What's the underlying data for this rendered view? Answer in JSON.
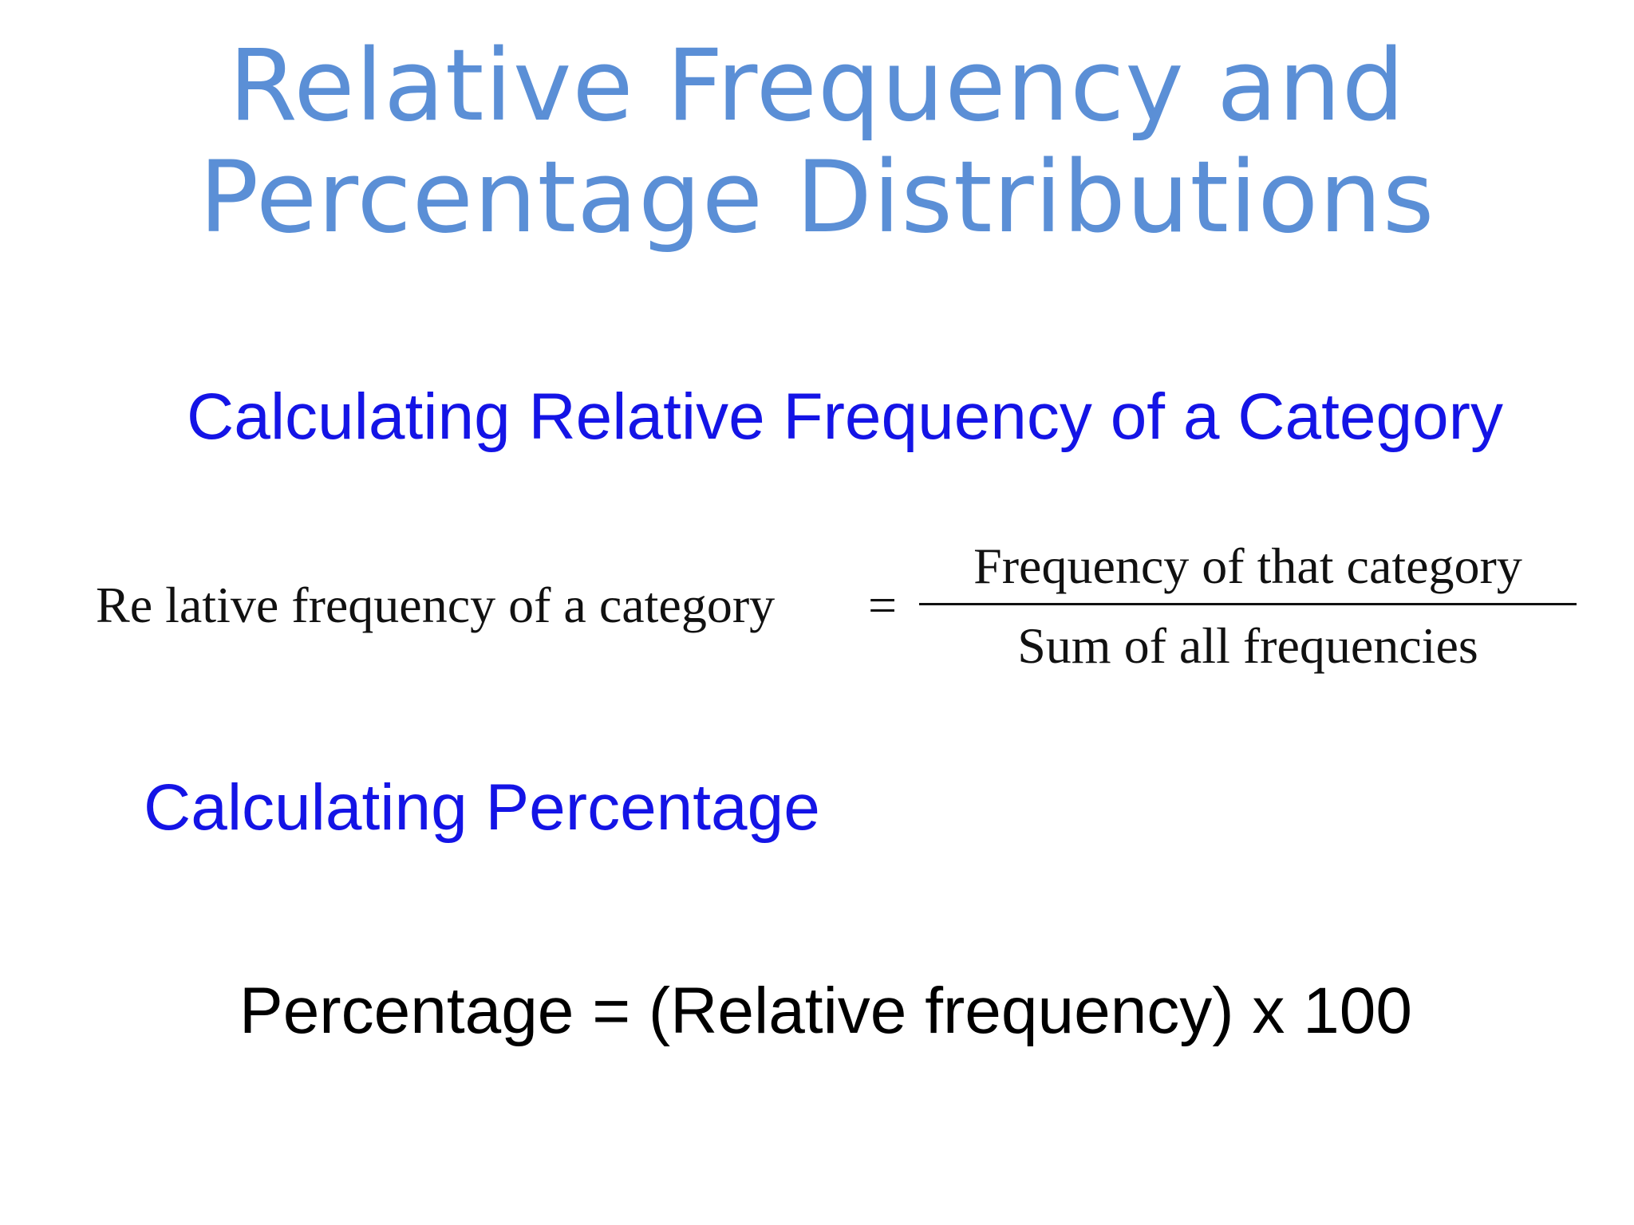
{
  "slide": {
    "title_line_1": "Relative Frequency and",
    "title_line_2": "Percentage Distributions",
    "section_1_heading": "Calculating Relative Frequency of a Category",
    "formula_1": {
      "lhs": "Re lative frequency of a category",
      "equals": "=",
      "numerator": "Frequency of that category",
      "denominator": "Sum of all frequencies"
    },
    "section_2_heading": "Calculating Percentage",
    "formula_2": "Percentage = (Relative frequency) x 100"
  },
  "colors": {
    "title": "#5b8fd6",
    "heading": "#1414e6",
    "text": "#000000",
    "background": "#ffffff"
  }
}
